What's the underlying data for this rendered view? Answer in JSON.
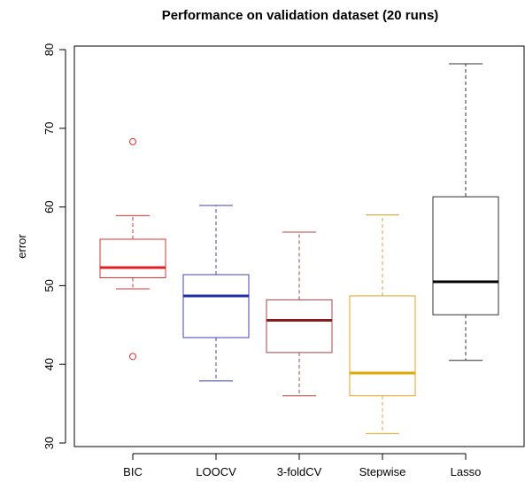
{
  "chart_data": {
    "type": "boxplot",
    "title": "Performance on validation dataset (20 runs)",
    "xlabel": "",
    "ylabel": "error",
    "ylim": [
      30,
      80
    ],
    "yticks": [
      30,
      40,
      50,
      60,
      70,
      80
    ],
    "grid": false,
    "legend": "none",
    "categories": [
      "BIC",
      "LOOCV",
      "3-foldCV",
      "Stepwise",
      "Lasso"
    ],
    "series": [
      {
        "name": "BIC",
        "color": "#e03030",
        "median_color": "#e02020",
        "whisker_low": 49.6,
        "q1": 51.0,
        "median": 52.3,
        "q3": 55.9,
        "whisker_high": 58.9,
        "outliers": [
          41.0,
          68.3
        ]
      },
      {
        "name": "LOOCV",
        "color": "#4040c0",
        "median_color": "#1f2fa8",
        "whisker_low": 37.9,
        "q1": 43.4,
        "median": 48.7,
        "q3": 51.4,
        "whisker_high": 60.2,
        "outliers": []
      },
      {
        "name": "3-foldCV",
        "color": "#b04040",
        "median_color": "#8b1a1a",
        "whisker_low": 36.0,
        "q1": 41.5,
        "median": 45.6,
        "q3": 48.2,
        "whisker_high": 56.8,
        "outliers": []
      },
      {
        "name": "Stepwise",
        "color": "#e8a020",
        "median_color": "#e0a800",
        "whisker_low": 31.2,
        "q1": 36.0,
        "median": 38.9,
        "q3": 48.7,
        "whisker_high": 59.0,
        "outliers": []
      },
      {
        "name": "Lasso",
        "color": "#303030",
        "median_color": "#000000",
        "whisker_low": 40.5,
        "q1": 46.3,
        "median": 50.5,
        "q3": 61.3,
        "whisker_high": 78.2,
        "outliers": []
      }
    ]
  }
}
